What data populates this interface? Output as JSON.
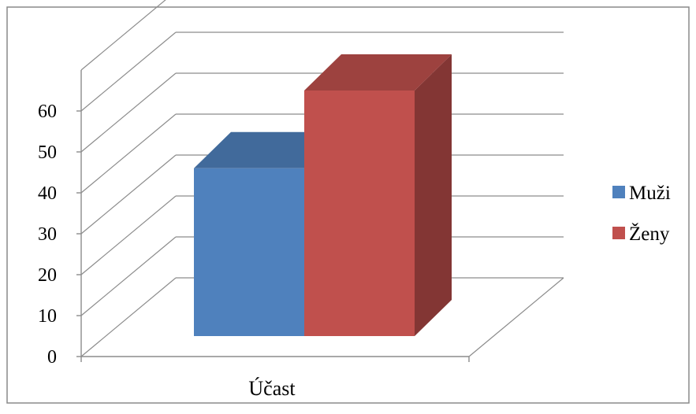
{
  "chart_data": {
    "type": "bar",
    "categories": [
      "Účast"
    ],
    "series": [
      {
        "name": "Muži",
        "values": [
          41
        ],
        "color": "#4F81BD"
      },
      {
        "name": "Ženy",
        "values": [
          60
        ],
        "color": "#C0504D"
      }
    ],
    "y_ticks": [
      "0",
      "10",
      "20",
      "30",
      "40",
      "50",
      "60"
    ],
    "ylim": [
      0,
      70
    ],
    "grid": true,
    "legend_position": "right",
    "style": "3d-column"
  }
}
